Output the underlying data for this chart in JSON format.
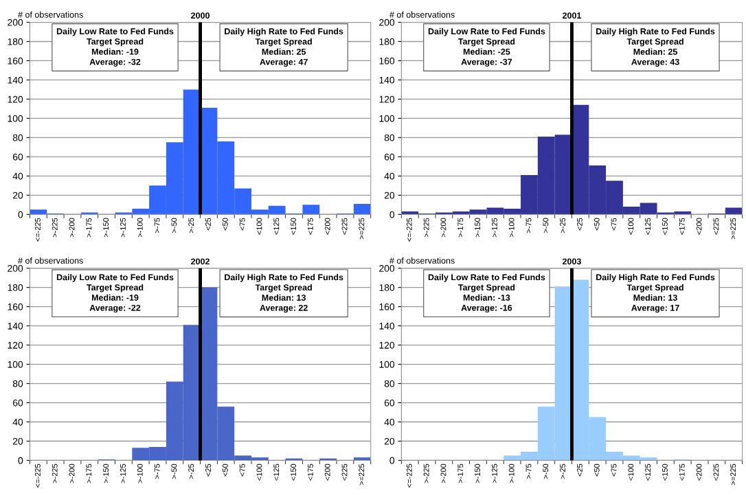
{
  "chart_data": [
    {
      "type": "bar",
      "title": "2000",
      "ylabel": "# of observations",
      "categories": [
        "<=-225",
        ">-225",
        ">-200",
        ">-175",
        ">-150",
        ">-125",
        ">-100",
        ">-75",
        ">-50",
        ">-25",
        "<25",
        "<50",
        "<75",
        "<100",
        "<125",
        "<150",
        "<175",
        "<200",
        "<225",
        ">=225"
      ],
      "color": "#3366ff",
      "values": [
        5,
        1,
        0,
        2,
        0,
        2,
        6,
        30,
        75,
        130,
        111,
        76,
        27,
        5,
        9,
        1,
        10,
        0,
        1,
        11
      ],
      "ylim": [
        0,
        200
      ],
      "yticks": [
        0,
        20,
        40,
        60,
        80,
        100,
        120,
        140,
        160,
        180,
        200
      ],
      "grid": "y",
      "ref_lines": [
        {
          "axis": "x",
          "value": ">-25",
          "color": "#000000"
        }
      ],
      "annotations": [
        "Daily Low Rate to Fed Funds\nTarget Spread\nMedian: -19\nAverage: -32",
        "Daily High Rate to Fed Funds\nTarget Spread\nMedian: 25\nAverage: 47"
      ]
    },
    {
      "type": "bar",
      "title": "2001",
      "ylabel": "# of observations",
      "categories": [
        "<=-225",
        ">-225",
        ">-200",
        ">-175",
        ">-150",
        ">-125",
        ">-100",
        ">-75",
        ">-50",
        ">-25",
        "<25",
        "<50",
        "<75",
        "<100",
        "<125",
        "<150",
        "<175",
        "<200",
        "<225",
        ">=225"
      ],
      "color": "#333399",
      "values": [
        3,
        1,
        2,
        3,
        5,
        7,
        6,
        41,
        81,
        83,
        114,
        51,
        35,
        8,
        12,
        2,
        3,
        0,
        1,
        7
      ],
      "ylim": [
        0,
        200
      ],
      "yticks": [
        0,
        20,
        40,
        60,
        80,
        100,
        120,
        140,
        160,
        180,
        200
      ],
      "grid": "y",
      "ref_lines": [
        {
          "axis": "x",
          "value": ">-25",
          "color": "#000000"
        }
      ],
      "annotations": [
        "Daily Low Rate to Fed Funds\nTarget Spread\nMedian: -25\nAverage: -37",
        "Daily High Rate to Fed Funds\nTarget Spread\nMedian: 25\nAverage: 43"
      ]
    },
    {
      "type": "bar",
      "title": "2002",
      "ylabel": "# of observations",
      "categories": [
        "<=-225",
        ">-225",
        ">-200",
        ">-175",
        ">-150",
        ">-125",
        ">-100",
        ">-75",
        ">-50",
        ">-25",
        "<25",
        "<50",
        "<75",
        "<100",
        "<125",
        "<150",
        "<175",
        "<200",
        "<225",
        ">=225"
      ],
      "color": "#4a66c8",
      "values": [
        0,
        0,
        0,
        0,
        1,
        0,
        13,
        14,
        82,
        141,
        180,
        56,
        5,
        3,
        0,
        2,
        0,
        2,
        0,
        3
      ],
      "ylim": [
        0,
        200
      ],
      "yticks": [
        0,
        20,
        40,
        60,
        80,
        100,
        120,
        140,
        160,
        180,
        200
      ],
      "grid": "y",
      "ref_lines": [
        {
          "axis": "x",
          "value": ">-25",
          "color": "#000000"
        }
      ],
      "annotations": [
        "Daily Low Rate to Fed Funds\nTarget Spread\nMedian: -19\nAverage: -22",
        "Daily High Rate to Fed Funds\nTarget Spread\nMedian: 13\nAverage: 22"
      ]
    },
    {
      "type": "bar",
      "title": "2003",
      "ylabel": "# of observations",
      "categories": [
        "<=-225",
        ">-225",
        ">-200",
        ">-175",
        ">-150",
        ">-125",
        ">-100",
        ">-75",
        ">-50",
        ">-25",
        "<25",
        "<50",
        "<75",
        "<100",
        "<125",
        "<150",
        "<175",
        "<200",
        "<225",
        ">=225"
      ],
      "color": "#99ccff",
      "values": [
        0,
        0,
        0,
        0,
        0,
        0,
        5,
        9,
        56,
        181,
        188,
        45,
        9,
        5,
        3,
        0,
        1,
        0,
        0,
        0
      ],
      "ylim": [
        0,
        200
      ],
      "yticks": [
        0,
        20,
        40,
        60,
        80,
        100,
        120,
        140,
        160,
        180,
        200
      ],
      "grid": "y",
      "ref_lines": [
        {
          "axis": "x",
          "value": ">-25",
          "color": "#000000"
        }
      ],
      "annotations": [
        "Daily Low Rate to Fed Funds\nTarget Spread\nMedian: -13\nAverage: -16",
        "Daily High Rate to Fed Funds\nTarget Spread\nMedian: 13\nAverage: 17"
      ]
    }
  ]
}
